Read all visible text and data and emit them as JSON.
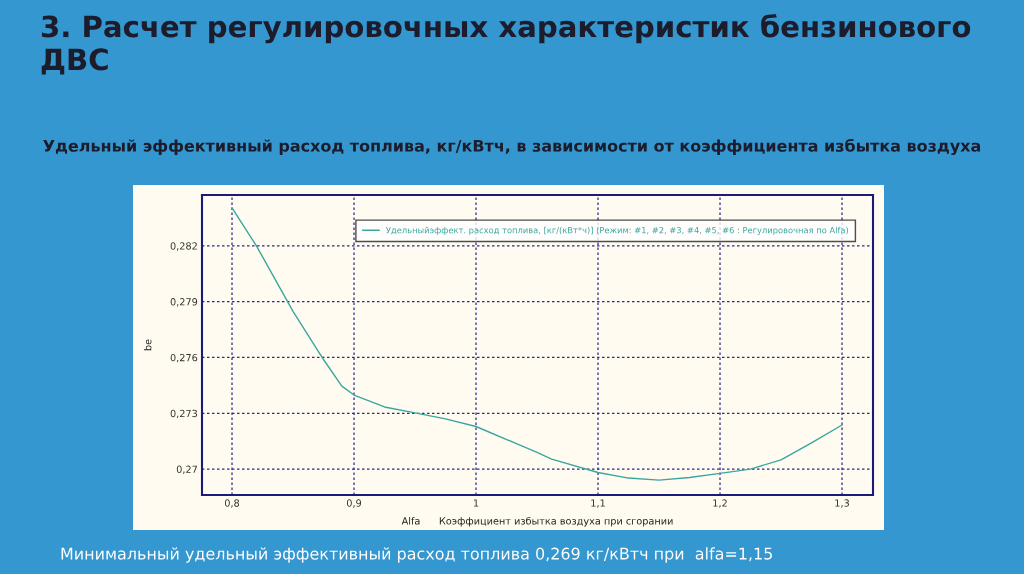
{
  "chart_data": {
    "type": "line",
    "title": "3. Расчет регулировочных характеристик бензинового ДВС",
    "subtitle": "Удельный эффективный расход топлива, кг/кВтч, в зависимости от коэффициента избытка воздуха",
    "xlabel": "Alfa      Коэффициент избытка воздуха при сгорании",
    "ylabel": "be",
    "annotations": [
      "Минимальный удельный эффективный расход топлива 0,269 кг/кВтч при  alfa=1,15"
    ],
    "x": [
      0.8,
      0.82,
      0.85,
      0.875,
      0.89,
      0.9,
      0.925,
      0.95,
      0.975,
      1.0,
      1.05,
      1.062,
      1.1,
      1.125,
      1.15,
      1.175,
      1.2,
      1.225,
      1.25,
      1.275,
      1.3
    ],
    "series": [
      {
        "name": "Удельныйэффект. расход топлива, [кг/(кВт*ч)] (Режим: #1, #2, #3, #4, #5, #6 : Регулировочная по Alfa)",
        "color": "#3aa6a0",
        "values": [
          0.28404,
          0.282,
          0.27848,
          0.27589,
          0.27446,
          0.27398,
          0.27334,
          0.27302,
          0.2727,
          0.27229,
          0.2709,
          0.27054,
          0.26982,
          0.26952,
          0.26941,
          0.26955,
          0.26977,
          0.27,
          0.2705,
          0.27141,
          0.27237
        ]
      }
    ],
    "xlim": [
      0.7754,
      1.3254
    ],
    "ylim": [
      0.26861,
      0.28473
    ],
    "xticks": [
      {
        "value": 0.8,
        "label": "0,8"
      },
      {
        "value": 0.9,
        "label": "0,9"
      },
      1,
      {
        "value": 1.1,
        "label": "1,1"
      },
      {
        "value": 1.2,
        "label": "1,2"
      },
      {
        "value": 1.3,
        "label": "1,3"
      }
    ],
    "yticks": [
      {
        "value": 0.27,
        "label": "0,27"
      },
      {
        "value": 0.273,
        "label": "0,273"
      },
      {
        "value": 0.276,
        "label": "0,276"
      },
      {
        "value": 0.279,
        "label": "0,279"
      },
      {
        "value": 0.282,
        "label": "0,282"
      }
    ],
    "grid": true,
    "legend": "top right",
    "marker": "none",
    "line_style": "solid"
  }
}
